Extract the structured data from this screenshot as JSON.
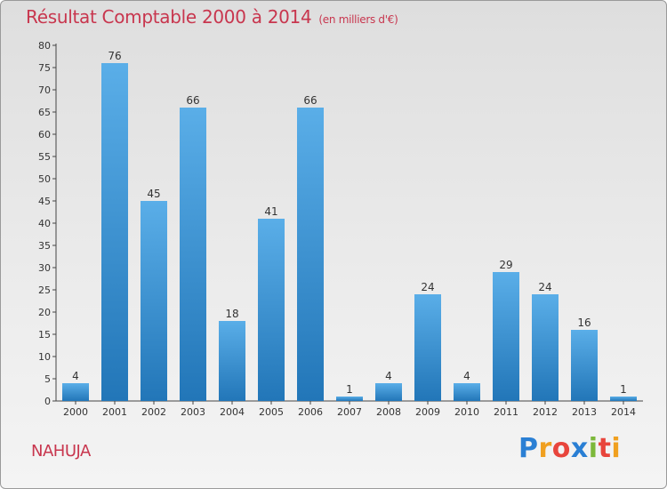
{
  "chart_data": {
    "type": "bar",
    "title": "Résultat Comptable 2000 à 2014",
    "subtitle": "(en milliers d'€)",
    "categories": [
      "2000",
      "2001",
      "2002",
      "2003",
      "2004",
      "2005",
      "2006",
      "2007",
      "2008",
      "2009",
      "2010",
      "2011",
      "2012",
      "2013",
      "2014"
    ],
    "values": [
      4,
      76,
      45,
      66,
      18,
      41,
      66,
      1,
      4,
      24,
      4,
      29,
      24,
      16,
      1
    ],
    "yticks": [
      0,
      5,
      10,
      15,
      20,
      25,
      30,
      35,
      40,
      45,
      50,
      55,
      60,
      65,
      70,
      75,
      80
    ],
    "ylim": [
      0,
      80
    ],
    "xlabel": "",
    "ylabel": "",
    "grid": false,
    "bar_color_top": "#5aaee8",
    "bar_color_bottom": "#2276b8"
  },
  "commune": "NAHUJA",
  "logo": {
    "letters": [
      "P",
      "r",
      "o",
      "x",
      "i",
      "t",
      "i"
    ],
    "colors": [
      "#2a7fd4",
      "#f0a020",
      "#e8453c",
      "#2a7fd4",
      "#7cb83a",
      "#e8453c",
      "#f0a020"
    ]
  }
}
